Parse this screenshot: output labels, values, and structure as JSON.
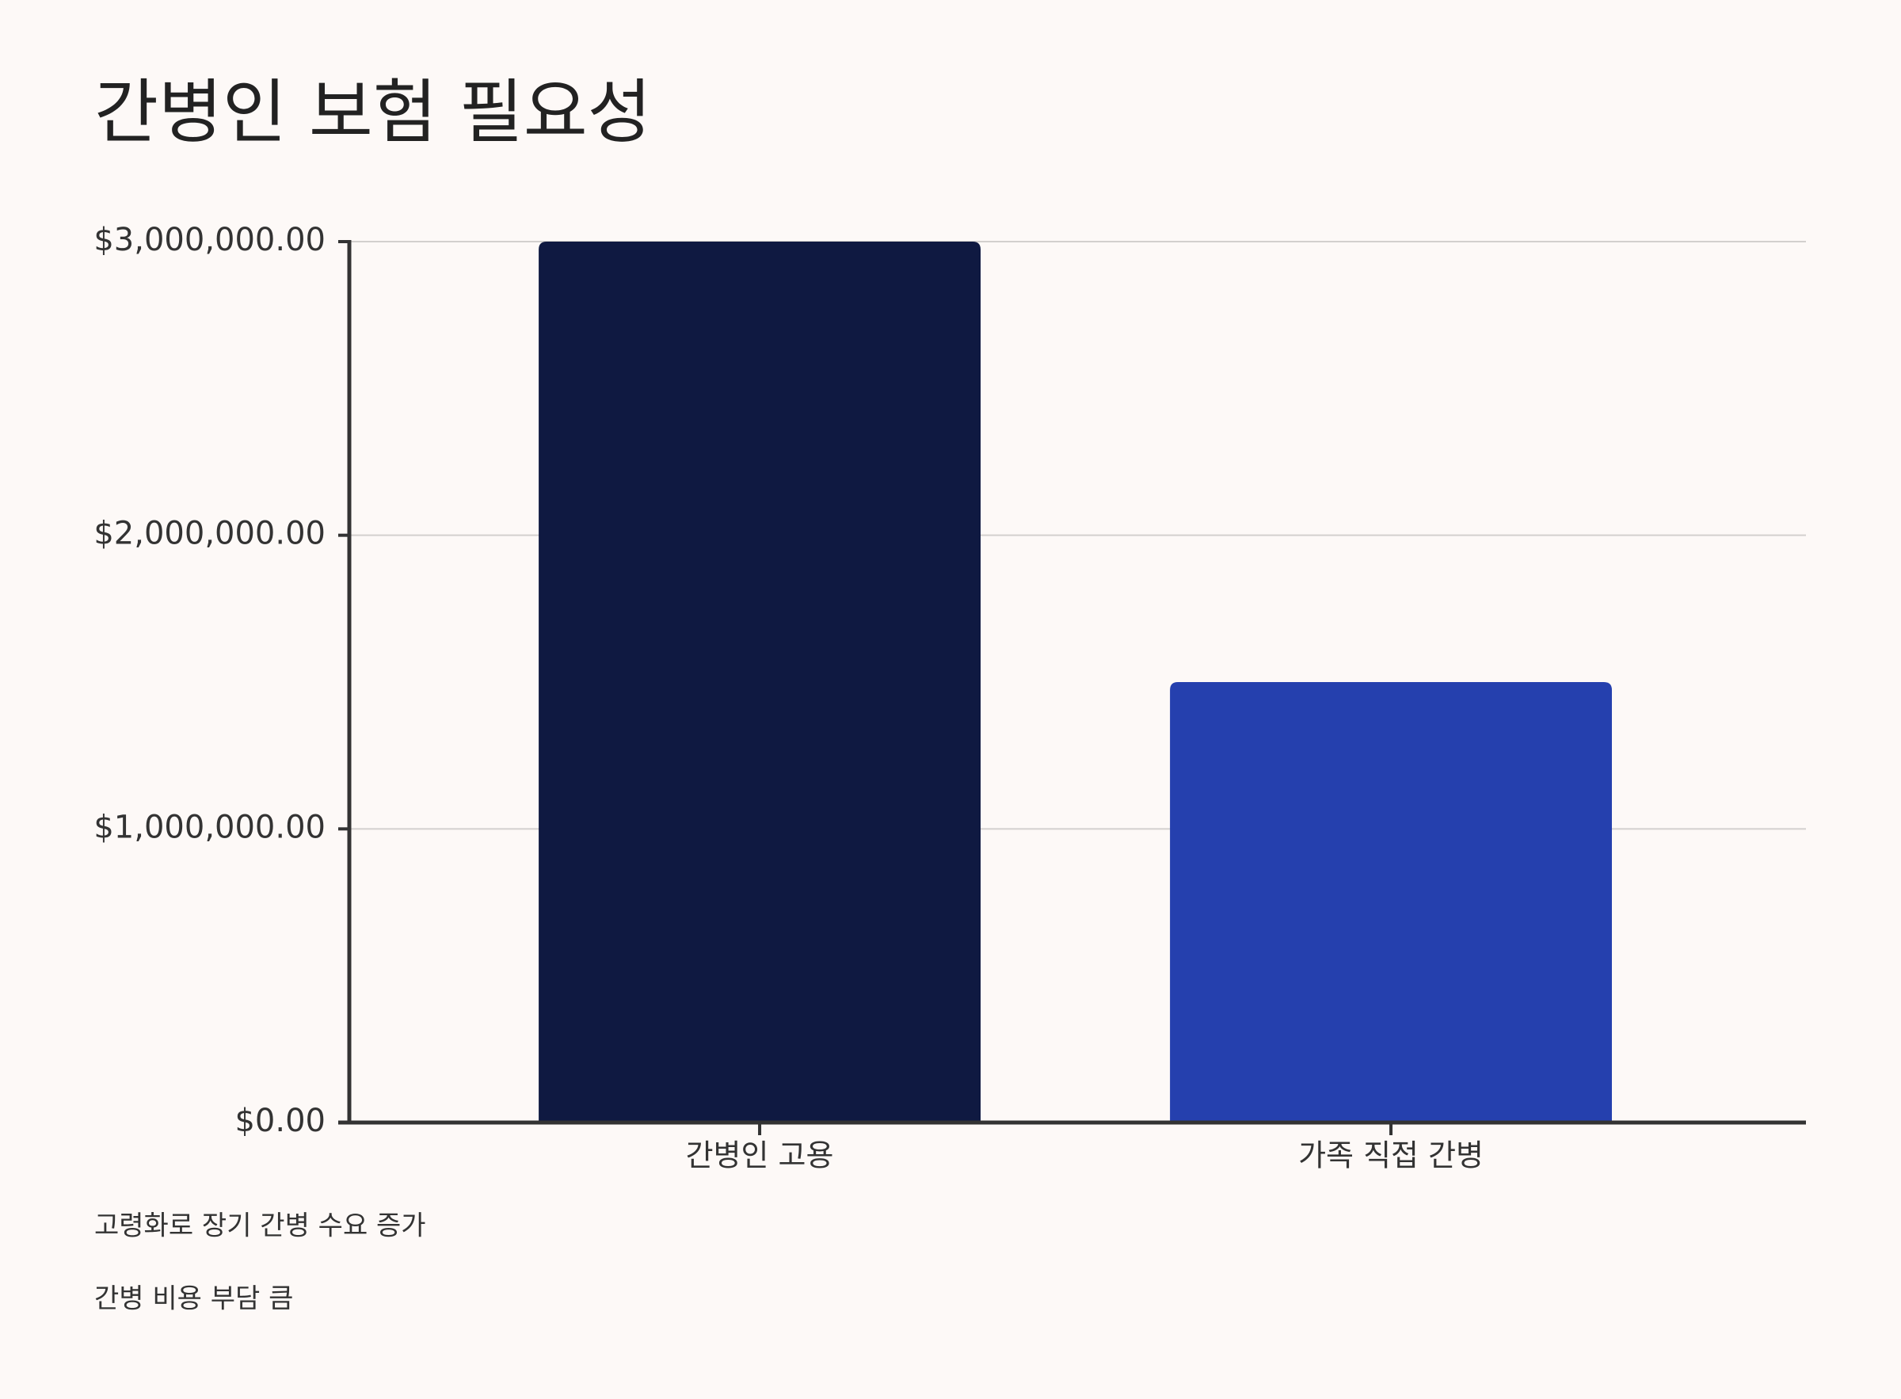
{
  "chart_data": {
    "type": "bar",
    "title": "간병인 보험 필요성",
    "categories": [
      "간병인 고용",
      "가족 직접 간병"
    ],
    "values": [
      3000000,
      1500000
    ],
    "colors": [
      "#0f1941",
      "#2540ae"
    ],
    "ylim": [
      0,
      3000000
    ],
    "yticks": [
      {
        "value": 0,
        "label": "$0.00"
      },
      {
        "value": 1000000,
        "label": "$1,000,000.00"
      },
      {
        "value": 2000000,
        "label": "$2,000,000.00"
      },
      {
        "value": 3000000,
        "label": "$3,000,000.00"
      }
    ],
    "grid": true,
    "annotations": [
      "고령화로 장기 간병 수요 증가",
      "간병 비용 부담 큼"
    ]
  }
}
